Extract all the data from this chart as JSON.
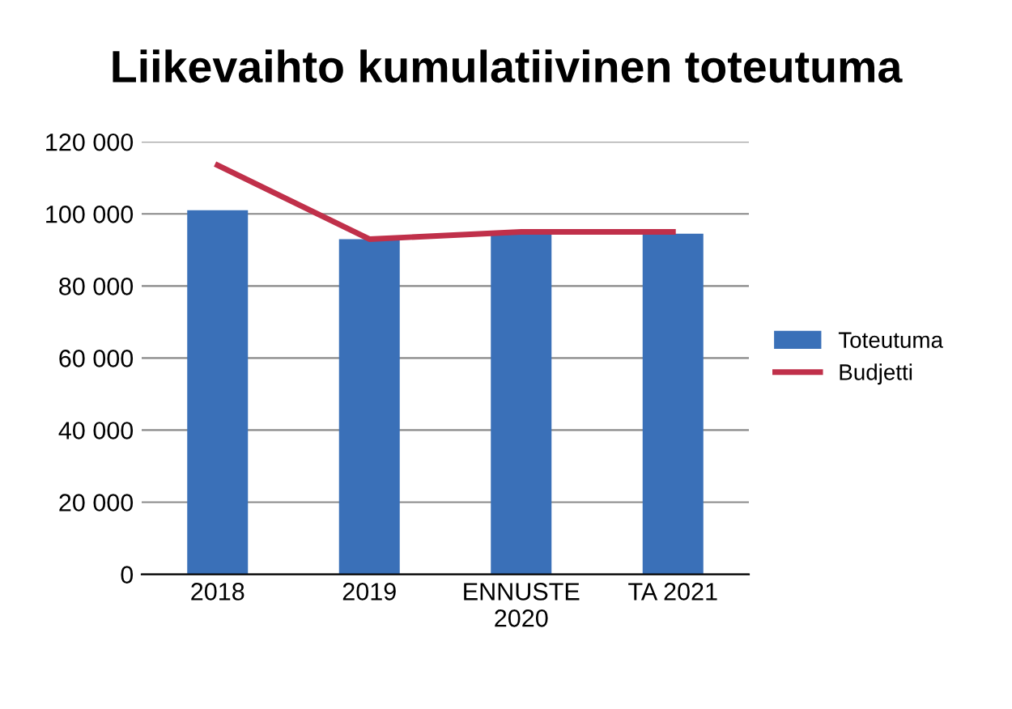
{
  "chart_data": {
    "type": "bar",
    "title": "Liikevaihto kumulatiivinen toteutuma",
    "categories": [
      "2018",
      "2019",
      "ENNUSTE\n2020",
      "TA 2021"
    ],
    "series": [
      {
        "name": "Toteutuma",
        "color": "#3a70b8",
        "values": [
          101000,
          93000,
          95000,
          94500
        ]
      },
      {
        "name": "Budjetti",
        "type": "line",
        "color": "#c0304a",
        "values": [
          113500,
          93000,
          95000,
          95000
        ]
      }
    ],
    "ylim": [
      0,
      120000
    ],
    "yticks": [
      {
        "value": 0,
        "label": "0"
      },
      {
        "value": 20000,
        "label": "20 000"
      },
      {
        "value": 40000,
        "label": "40 000"
      },
      {
        "value": 60000,
        "label": "60 000"
      },
      {
        "value": 80000,
        "label": "80 000"
      },
      {
        "value": 100000,
        "label": "100 000"
      },
      {
        "value": 120000,
        "label": "120 000"
      }
    ],
    "grid": "y",
    "legend": "right"
  }
}
